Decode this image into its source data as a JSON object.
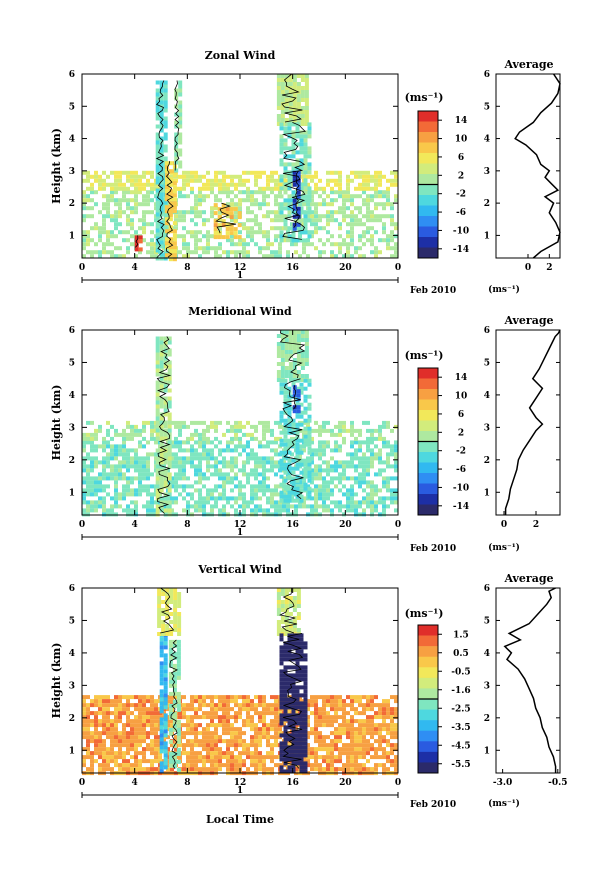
{
  "xlabel": "Local Time",
  "x_ticks": [
    "0",
    "4",
    "8",
    "12",
    "16",
    "20",
    "0"
  ],
  "date_tick": "1",
  "date_label": "Feb 2010",
  "ylabel": "Height (km)",
  "y_ticks": [
    "1",
    "2",
    "3",
    "4",
    "5",
    "6"
  ],
  "cb_unit": "(ms⁻¹)",
  "avg_title": "Average",
  "avg_unit": "(ms⁻¹)",
  "colors": {
    "scale": [
      "#2b2a6a",
      "#1d2fa6",
      "#2a5be0",
      "#2f8ef3",
      "#31b9f0",
      "#4ed8df",
      "#7fe6c0",
      "#aee9a0",
      "#d2ec7c",
      "#f2e85a",
      "#f9c84a",
      "#f7a042",
      "#f26a37",
      "#e02e2a"
    ],
    "contour": "#000000"
  },
  "chart_data": [
    {
      "type": "heatmap",
      "title": "Zonal Wind",
      "xlabel": "",
      "ylabel": "Height (km)",
      "xlim": [
        0,
        24
      ],
      "ylim": [
        0.3,
        6
      ],
      "colorbar": {
        "ticks": [
          "14",
          "10",
          "6",
          "2",
          "-2",
          "-6",
          "-10",
          "-14"
        ],
        "range": [
          -14,
          14
        ]
      },
      "background": "mixed",
      "bands": [
        {
          "x": [
            0,
            24
          ],
          "y": [
            0.3,
            2.4
          ],
          "value": 1,
          "density": 0.55
        },
        {
          "x": [
            0,
            24
          ],
          "y": [
            2.4,
            3.0
          ],
          "value": 4,
          "density": 0.65
        },
        {
          "x": [
            5.6,
            6.3
          ],
          "y": [
            0.3,
            5.8
          ],
          "value": -2,
          "density": 0.9
        },
        {
          "x": [
            6.3,
            7.0
          ],
          "y": [
            0.3,
            3.3
          ],
          "value": 6,
          "density": 0.85
        },
        {
          "x": [
            7.0,
            7.4
          ],
          "y": [
            3.0,
            5.8
          ],
          "value": 0,
          "density": 0.8
        },
        {
          "x": [
            14.8,
            17.0
          ],
          "y": [
            4.5,
            6.0
          ],
          "value": 2,
          "density": 0.95
        },
        {
          "x": [
            15.0,
            17.2
          ],
          "y": [
            0.8,
            4.5
          ],
          "value": -1,
          "density": 0.7
        },
        {
          "x": [
            16.0,
            16.6
          ],
          "y": [
            1.2,
            3.0
          ],
          "value": -10,
          "density": 0.6
        },
        {
          "x": [
            4.0,
            4.4
          ],
          "y": [
            0.6,
            1.0
          ],
          "value": 13,
          "density": 0.8
        },
        {
          "x": [
            10.0,
            12.0
          ],
          "y": [
            1.0,
            2.0
          ],
          "value": 7,
          "density": 0.6
        }
      ],
      "average": {
        "xlim": [
          -3,
          3
        ],
        "xticks": [
          "0",
          "2"
        ],
        "x": [
          0.5,
          1.2,
          2.8,
          3.0,
          2.6,
          2.0,
          2.4,
          1.6,
          2.8,
          2.2,
          1.6,
          2.0,
          1.2,
          0.8,
          -0.2,
          -1.2,
          -0.8,
          0.5,
          1.2,
          2.2,
          2.8,
          3.0,
          2.4
        ],
        "y": [
          0.3,
          0.5,
          0.8,
          1.1,
          1.4,
          1.7,
          2.0,
          2.2,
          2.4,
          2.6,
          2.8,
          3.0,
          3.2,
          3.5,
          3.8,
          4.0,
          4.2,
          4.5,
          4.8,
          5.1,
          5.4,
          5.7,
          6.0
        ]
      }
    },
    {
      "type": "heatmap",
      "title": "Meridional Wind",
      "xlabel": "",
      "ylabel": "Height (km)",
      "xlim": [
        0,
        24
      ],
      "ylim": [
        0.3,
        6
      ],
      "colorbar": {
        "ticks": [
          "14",
          "10",
          "6",
          "2",
          "-2",
          "-6",
          "-10",
          "-14"
        ],
        "range": [
          -14,
          14
        ]
      },
      "background": "cool",
      "bands": [
        {
          "x": [
            0,
            24
          ],
          "y": [
            0.3,
            2.6
          ],
          "value": -1,
          "density": 0.65
        },
        {
          "x": [
            0,
            24
          ],
          "y": [
            2.6,
            3.2
          ],
          "value": 1,
          "density": 0.55
        },
        {
          "x": [
            5.6,
            6.8
          ],
          "y": [
            0.3,
            5.8
          ],
          "value": 1,
          "density": 0.85
        },
        {
          "x": [
            14.8,
            17.2
          ],
          "y": [
            4.5,
            6.0
          ],
          "value": 0,
          "density": 0.9
        },
        {
          "x": [
            15.0,
            17.2
          ],
          "y": [
            0.8,
            4.5
          ],
          "value": -2,
          "density": 0.7
        },
        {
          "x": [
            16.0,
            16.4
          ],
          "y": [
            3.5,
            4.3
          ],
          "value": -9,
          "density": 0.7
        }
      ],
      "average": {
        "xlim": [
          -0.5,
          3.5
        ],
        "xticks": [
          "0",
          "2"
        ],
        "x": [
          0.1,
          0.1,
          0.3,
          0.4,
          0.6,
          0.8,
          0.9,
          1.2,
          1.6,
          2.0,
          2.4,
          2.0,
          1.6,
          2.0,
          2.4,
          1.8,
          2.2,
          2.5,
          2.8,
          3.0,
          3.2,
          3.4,
          3.5
        ],
        "y": [
          0.3,
          0.5,
          0.8,
          1.1,
          1.4,
          1.7,
          2.0,
          2.3,
          2.6,
          2.9,
          3.1,
          3.3,
          3.6,
          3.9,
          4.2,
          4.5,
          4.8,
          5.1,
          5.4,
          5.6,
          5.8,
          5.9,
          6.0
        ]
      }
    },
    {
      "type": "heatmap",
      "title": "Vertical Wind",
      "xlabel": "Local Time",
      "ylabel": "Height (km)",
      "xlim": [
        0,
        24
      ],
      "ylim": [
        0.3,
        6
      ],
      "colorbar": {
        "ticks": [
          "1.5",
          "0.5",
          "-0.5",
          "-1.6",
          "-2.5",
          "-3.5",
          "-4.5",
          "-5.5"
        ],
        "range": [
          -5.5,
          1.5
        ]
      },
      "background": "warm",
      "bands": [
        {
          "x": [
            0,
            24
          ],
          "y": [
            0.3,
            2.7
          ],
          "value": 0.2,
          "density": 0.8
        },
        {
          "x": [
            5.9,
            6.4
          ],
          "y": [
            0.4,
            4.6
          ],
          "value": -3.2,
          "density": 0.9
        },
        {
          "x": [
            6.6,
            7.3
          ],
          "y": [
            0.4,
            4.4
          ],
          "value": -2.0,
          "density": 0.8
        },
        {
          "x": [
            5.7,
            7.3
          ],
          "y": [
            4.6,
            6.0
          ],
          "value": -1.0,
          "density": 0.9
        },
        {
          "x": [
            14.8,
            16.6
          ],
          "y": [
            4.6,
            6.0
          ],
          "value": -1.3,
          "density": 0.9
        },
        {
          "x": [
            15.0,
            17.0
          ],
          "y": [
            0.4,
            4.6
          ],
          "value": -5.5,
          "density": 0.85
        }
      ],
      "average": {
        "xlim": [
          -3.3,
          -0.4
        ],
        "xticks": [
          "-3.0",
          "-0.5"
        ],
        "x": [
          -0.6,
          -0.6,
          -0.7,
          -0.9,
          -1.0,
          -1.2,
          -1.3,
          -1.5,
          -1.6,
          -1.8,
          -2.0,
          -2.3,
          -2.8,
          -2.6,
          -2.9,
          -2.2,
          -2.7,
          -1.8,
          -1.4,
          -1.0,
          -0.8,
          -0.9,
          -0.6
        ],
        "y": [
          0.3,
          0.5,
          0.8,
          1.1,
          1.4,
          1.7,
          2.0,
          2.3,
          2.6,
          2.9,
          3.2,
          3.5,
          3.8,
          4.0,
          4.2,
          4.4,
          4.6,
          4.9,
          5.2,
          5.5,
          5.7,
          5.9,
          6.0
        ]
      }
    }
  ]
}
